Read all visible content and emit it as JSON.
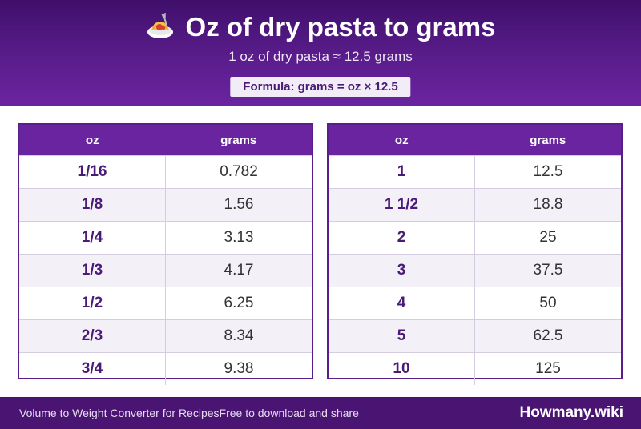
{
  "header": {
    "icon": "spaghetti-icon",
    "title": "Oz of dry pasta to grams",
    "subtitle": "1 oz of dry pasta ≈ 12.5 grams",
    "formula": "Formula: grams = oz × 12.5"
  },
  "tables": {
    "left": {
      "headers": {
        "oz": "oz",
        "grams": "grams"
      },
      "rows": [
        {
          "oz": "1/16",
          "grams": "0.782"
        },
        {
          "oz": "1/8",
          "grams": "1.56"
        },
        {
          "oz": "1/4",
          "grams": "3.13"
        },
        {
          "oz": "1/3",
          "grams": "4.17"
        },
        {
          "oz": "1/2",
          "grams": "6.25"
        },
        {
          "oz": "2/3",
          "grams": "8.34"
        },
        {
          "oz": "3/4",
          "grams": "9.38"
        }
      ]
    },
    "right": {
      "headers": {
        "oz": "oz",
        "grams": "grams"
      },
      "rows": [
        {
          "oz": "1",
          "grams": "12.5"
        },
        {
          "oz": "1 1/2",
          "grams": "18.8"
        },
        {
          "oz": "2",
          "grams": "25"
        },
        {
          "oz": "3",
          "grams": "37.5"
        },
        {
          "oz": "4",
          "grams": "50"
        },
        {
          "oz": "5",
          "grams": "62.5"
        },
        {
          "oz": "10",
          "grams": "125"
        }
      ]
    }
  },
  "footer": {
    "left_text": "Volume to Weight Converter for Recipes",
    "share_text": "Free to download and share",
    "brand": "Howmany.wiki"
  },
  "colors": {
    "header_bg": "#5a1d8c",
    "table_header_bg": "#6a24a0",
    "oz_text": "#4a1a78",
    "stripe": "#f4f0f8",
    "footer_bg": "#4a1572"
  }
}
